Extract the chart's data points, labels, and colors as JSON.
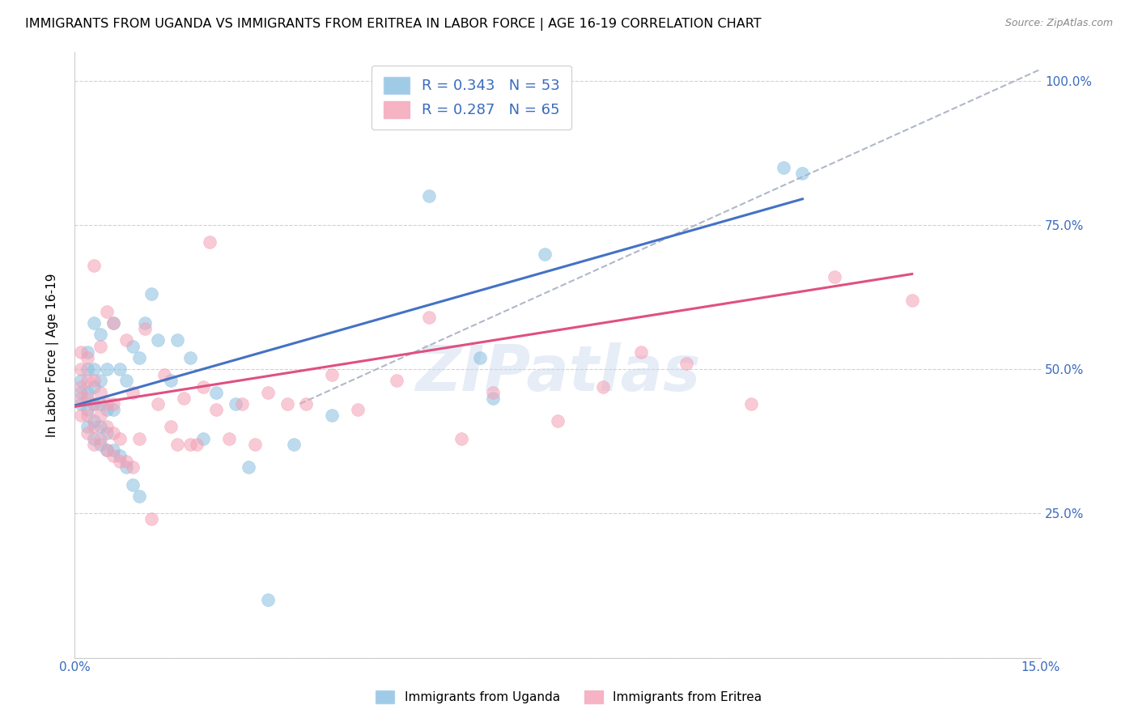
{
  "title": "IMMIGRANTS FROM UGANDA VS IMMIGRANTS FROM ERITREA IN LABOR FORCE | AGE 16-19 CORRELATION CHART",
  "source": "Source: ZipAtlas.com",
  "ylabel": "In Labor Force | Age 16-19",
  "watermark": "ZIPatlas",
  "legend_label_uganda": "Immigrants from Uganda",
  "legend_label_eritrea": "Immigrants from Eritrea",
  "color_uganda": "#89bfe0",
  "color_eritrea": "#f4a0b5",
  "color_uganda_line": "#4472c4",
  "color_eritrea_line": "#e05080",
  "color_dashed": "#b0b8c8",
  "xlim": [
    0.0,
    0.15
  ],
  "ylim": [
    0.0,
    1.05
  ],
  "xtick_positions": [
    0.0,
    0.03,
    0.06,
    0.09,
    0.12,
    0.15
  ],
  "xticklabels": [
    "0.0%",
    "",
    "",
    "",
    "",
    "15.0%"
  ],
  "ytick_positions": [
    0.0,
    0.25,
    0.5,
    0.75,
    1.0
  ],
  "yticklabels_right": [
    "",
    "25.0%",
    "50.0%",
    "75.0%",
    "100.0%"
  ],
  "uganda_x": [
    0.001,
    0.001,
    0.001,
    0.002,
    0.002,
    0.002,
    0.002,
    0.002,
    0.003,
    0.003,
    0.003,
    0.003,
    0.003,
    0.003,
    0.004,
    0.004,
    0.004,
    0.004,
    0.004,
    0.005,
    0.005,
    0.005,
    0.005,
    0.006,
    0.006,
    0.006,
    0.007,
    0.007,
    0.008,
    0.008,
    0.009,
    0.009,
    0.01,
    0.01,
    0.011,
    0.012,
    0.013,
    0.015,
    0.016,
    0.018,
    0.02,
    0.022,
    0.025,
    0.027,
    0.03,
    0.034,
    0.04,
    0.055,
    0.063,
    0.065,
    0.073,
    0.11,
    0.113
  ],
  "uganda_y": [
    0.44,
    0.46,
    0.48,
    0.4,
    0.43,
    0.46,
    0.5,
    0.53,
    0.38,
    0.41,
    0.44,
    0.47,
    0.5,
    0.58,
    0.37,
    0.4,
    0.44,
    0.48,
    0.56,
    0.36,
    0.39,
    0.43,
    0.5,
    0.36,
    0.43,
    0.58,
    0.35,
    0.5,
    0.33,
    0.48,
    0.3,
    0.54,
    0.28,
    0.52,
    0.58,
    0.63,
    0.55,
    0.48,
    0.55,
    0.52,
    0.38,
    0.46,
    0.44,
    0.33,
    0.1,
    0.37,
    0.42,
    0.8,
    0.52,
    0.45,
    0.7,
    0.85,
    0.84
  ],
  "eritrea_x": [
    0.001,
    0.001,
    0.001,
    0.001,
    0.001,
    0.002,
    0.002,
    0.002,
    0.002,
    0.002,
    0.003,
    0.003,
    0.003,
    0.003,
    0.003,
    0.004,
    0.004,
    0.004,
    0.004,
    0.005,
    0.005,
    0.005,
    0.005,
    0.006,
    0.006,
    0.006,
    0.006,
    0.007,
    0.007,
    0.008,
    0.008,
    0.009,
    0.009,
    0.01,
    0.011,
    0.012,
    0.013,
    0.014,
    0.015,
    0.016,
    0.017,
    0.018,
    0.019,
    0.02,
    0.021,
    0.022,
    0.024,
    0.026,
    0.028,
    0.03,
    0.033,
    0.036,
    0.04,
    0.044,
    0.05,
    0.055,
    0.06,
    0.065,
    0.075,
    0.082,
    0.088,
    0.095,
    0.105,
    0.118,
    0.13
  ],
  "eritrea_y": [
    0.42,
    0.45,
    0.47,
    0.5,
    0.53,
    0.39,
    0.42,
    0.45,
    0.48,
    0.52,
    0.37,
    0.4,
    0.44,
    0.48,
    0.68,
    0.38,
    0.42,
    0.46,
    0.54,
    0.36,
    0.4,
    0.44,
    0.6,
    0.35,
    0.39,
    0.44,
    0.58,
    0.34,
    0.38,
    0.34,
    0.55,
    0.33,
    0.46,
    0.38,
    0.57,
    0.24,
    0.44,
    0.49,
    0.4,
    0.37,
    0.45,
    0.37,
    0.37,
    0.47,
    0.72,
    0.43,
    0.38,
    0.44,
    0.37,
    0.46,
    0.44,
    0.44,
    0.49,
    0.43,
    0.48,
    0.59,
    0.38,
    0.46,
    0.41,
    0.47,
    0.53,
    0.51,
    0.44,
    0.66,
    0.62
  ],
  "uganda_line_x": [
    0.0,
    0.113
  ],
  "uganda_line_y": [
    0.437,
    0.795
  ],
  "eritrea_line_x": [
    0.0,
    0.13
  ],
  "eritrea_line_y": [
    0.435,
    0.665
  ],
  "dashed_line_x": [
    0.035,
    0.15
  ],
  "dashed_line_y": [
    0.44,
    1.02
  ]
}
